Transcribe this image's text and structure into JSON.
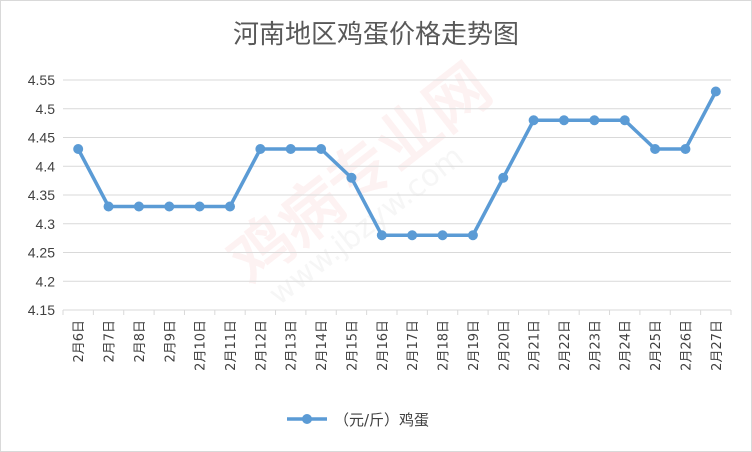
{
  "chart_data": {
    "type": "line",
    "title": "河南地区鸡蛋价格走势图",
    "categories": [
      "2月6日",
      "2月7日",
      "2月8日",
      "2月9日",
      "2月10日",
      "2月11日",
      "2月12日",
      "2月13日",
      "2月14日",
      "2月15日",
      "2月16日",
      "2月17日",
      "2月18日",
      "2月19日",
      "2月20日",
      "2月21日",
      "2月22日",
      "2月23日",
      "2月24日",
      "2月25日",
      "2月26日",
      "2月27日"
    ],
    "series": [
      {
        "name": "（元/斤）鸡蛋",
        "values": [
          4.43,
          4.33,
          4.33,
          4.33,
          4.33,
          4.33,
          4.43,
          4.43,
          4.43,
          4.38,
          4.28,
          4.28,
          4.28,
          4.28,
          4.38,
          4.48,
          4.48,
          4.48,
          4.48,
          4.43,
          4.43,
          4.53
        ]
      }
    ],
    "ylim": [
      4.15,
      4.55
    ],
    "yticks": [
      "4.15",
      "4.2",
      "4.25",
      "4.3",
      "4.35",
      "4.4",
      "4.45",
      "4.5",
      "4.55"
    ],
    "xlabel": "",
    "ylabel": "",
    "grid": true,
    "legend": "bottom",
    "colors": {
      "line": "#5b9bd5",
      "grid": "#d9d9d9",
      "text": "#404040",
      "title": "#595959"
    },
    "watermark": {
      "main": "鸡病专业网",
      "sub": "www.jbzyw.com"
    }
  }
}
